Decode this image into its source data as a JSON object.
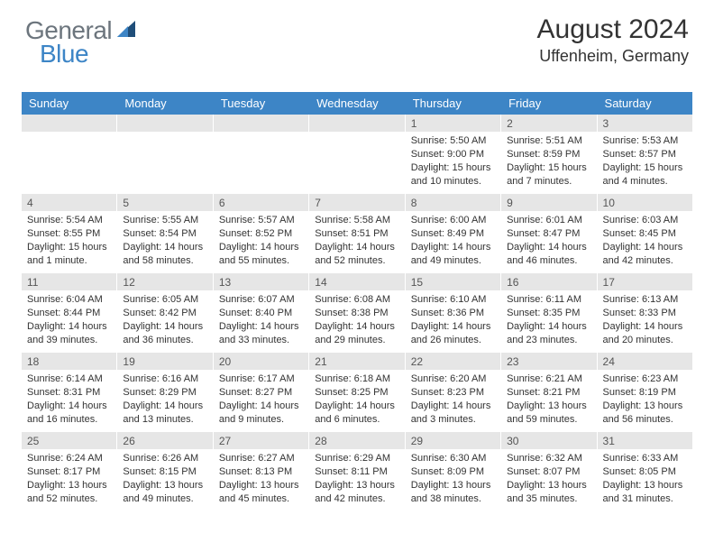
{
  "logo": {
    "part1": "General",
    "part2": "Blue"
  },
  "title": "August 2024",
  "location": "Uffenheim, Germany",
  "colors": {
    "header_bg": "#3d85c6",
    "header_fg": "#ffffff",
    "daynum_bg": "#e6e6e6",
    "text": "#333333",
    "logo_gray": "#6c757d",
    "logo_blue": "#3d85c6",
    "background": "#ffffff"
  },
  "weekdays": [
    "Sunday",
    "Monday",
    "Tuesday",
    "Wednesday",
    "Thursday",
    "Friday",
    "Saturday"
  ],
  "weeks": [
    [
      {
        "n": "",
        "sr": "",
        "ss": "",
        "dl": ""
      },
      {
        "n": "",
        "sr": "",
        "ss": "",
        "dl": ""
      },
      {
        "n": "",
        "sr": "",
        "ss": "",
        "dl": ""
      },
      {
        "n": "",
        "sr": "",
        "ss": "",
        "dl": ""
      },
      {
        "n": "1",
        "sr": "Sunrise: 5:50 AM",
        "ss": "Sunset: 9:00 PM",
        "dl": "Daylight: 15 hours and 10 minutes."
      },
      {
        "n": "2",
        "sr": "Sunrise: 5:51 AM",
        "ss": "Sunset: 8:59 PM",
        "dl": "Daylight: 15 hours and 7 minutes."
      },
      {
        "n": "3",
        "sr": "Sunrise: 5:53 AM",
        "ss": "Sunset: 8:57 PM",
        "dl": "Daylight: 15 hours and 4 minutes."
      }
    ],
    [
      {
        "n": "4",
        "sr": "Sunrise: 5:54 AM",
        "ss": "Sunset: 8:55 PM",
        "dl": "Daylight: 15 hours and 1 minute."
      },
      {
        "n": "5",
        "sr": "Sunrise: 5:55 AM",
        "ss": "Sunset: 8:54 PM",
        "dl": "Daylight: 14 hours and 58 minutes."
      },
      {
        "n": "6",
        "sr": "Sunrise: 5:57 AM",
        "ss": "Sunset: 8:52 PM",
        "dl": "Daylight: 14 hours and 55 minutes."
      },
      {
        "n": "7",
        "sr": "Sunrise: 5:58 AM",
        "ss": "Sunset: 8:51 PM",
        "dl": "Daylight: 14 hours and 52 minutes."
      },
      {
        "n": "8",
        "sr": "Sunrise: 6:00 AM",
        "ss": "Sunset: 8:49 PM",
        "dl": "Daylight: 14 hours and 49 minutes."
      },
      {
        "n": "9",
        "sr": "Sunrise: 6:01 AM",
        "ss": "Sunset: 8:47 PM",
        "dl": "Daylight: 14 hours and 46 minutes."
      },
      {
        "n": "10",
        "sr": "Sunrise: 6:03 AM",
        "ss": "Sunset: 8:45 PM",
        "dl": "Daylight: 14 hours and 42 minutes."
      }
    ],
    [
      {
        "n": "11",
        "sr": "Sunrise: 6:04 AM",
        "ss": "Sunset: 8:44 PM",
        "dl": "Daylight: 14 hours and 39 minutes."
      },
      {
        "n": "12",
        "sr": "Sunrise: 6:05 AM",
        "ss": "Sunset: 8:42 PM",
        "dl": "Daylight: 14 hours and 36 minutes."
      },
      {
        "n": "13",
        "sr": "Sunrise: 6:07 AM",
        "ss": "Sunset: 8:40 PM",
        "dl": "Daylight: 14 hours and 33 minutes."
      },
      {
        "n": "14",
        "sr": "Sunrise: 6:08 AM",
        "ss": "Sunset: 8:38 PM",
        "dl": "Daylight: 14 hours and 29 minutes."
      },
      {
        "n": "15",
        "sr": "Sunrise: 6:10 AM",
        "ss": "Sunset: 8:36 PM",
        "dl": "Daylight: 14 hours and 26 minutes."
      },
      {
        "n": "16",
        "sr": "Sunrise: 6:11 AM",
        "ss": "Sunset: 8:35 PM",
        "dl": "Daylight: 14 hours and 23 minutes."
      },
      {
        "n": "17",
        "sr": "Sunrise: 6:13 AM",
        "ss": "Sunset: 8:33 PM",
        "dl": "Daylight: 14 hours and 20 minutes."
      }
    ],
    [
      {
        "n": "18",
        "sr": "Sunrise: 6:14 AM",
        "ss": "Sunset: 8:31 PM",
        "dl": "Daylight: 14 hours and 16 minutes."
      },
      {
        "n": "19",
        "sr": "Sunrise: 6:16 AM",
        "ss": "Sunset: 8:29 PM",
        "dl": "Daylight: 14 hours and 13 minutes."
      },
      {
        "n": "20",
        "sr": "Sunrise: 6:17 AM",
        "ss": "Sunset: 8:27 PM",
        "dl": "Daylight: 14 hours and 9 minutes."
      },
      {
        "n": "21",
        "sr": "Sunrise: 6:18 AM",
        "ss": "Sunset: 8:25 PM",
        "dl": "Daylight: 14 hours and 6 minutes."
      },
      {
        "n": "22",
        "sr": "Sunrise: 6:20 AM",
        "ss": "Sunset: 8:23 PM",
        "dl": "Daylight: 14 hours and 3 minutes."
      },
      {
        "n": "23",
        "sr": "Sunrise: 6:21 AM",
        "ss": "Sunset: 8:21 PM",
        "dl": "Daylight: 13 hours and 59 minutes."
      },
      {
        "n": "24",
        "sr": "Sunrise: 6:23 AM",
        "ss": "Sunset: 8:19 PM",
        "dl": "Daylight: 13 hours and 56 minutes."
      }
    ],
    [
      {
        "n": "25",
        "sr": "Sunrise: 6:24 AM",
        "ss": "Sunset: 8:17 PM",
        "dl": "Daylight: 13 hours and 52 minutes."
      },
      {
        "n": "26",
        "sr": "Sunrise: 6:26 AM",
        "ss": "Sunset: 8:15 PM",
        "dl": "Daylight: 13 hours and 49 minutes."
      },
      {
        "n": "27",
        "sr": "Sunrise: 6:27 AM",
        "ss": "Sunset: 8:13 PM",
        "dl": "Daylight: 13 hours and 45 minutes."
      },
      {
        "n": "28",
        "sr": "Sunrise: 6:29 AM",
        "ss": "Sunset: 8:11 PM",
        "dl": "Daylight: 13 hours and 42 minutes."
      },
      {
        "n": "29",
        "sr": "Sunrise: 6:30 AM",
        "ss": "Sunset: 8:09 PM",
        "dl": "Daylight: 13 hours and 38 minutes."
      },
      {
        "n": "30",
        "sr": "Sunrise: 6:32 AM",
        "ss": "Sunset: 8:07 PM",
        "dl": "Daylight: 13 hours and 35 minutes."
      },
      {
        "n": "31",
        "sr": "Sunrise: 6:33 AM",
        "ss": "Sunset: 8:05 PM",
        "dl": "Daylight: 13 hours and 31 minutes."
      }
    ]
  ]
}
